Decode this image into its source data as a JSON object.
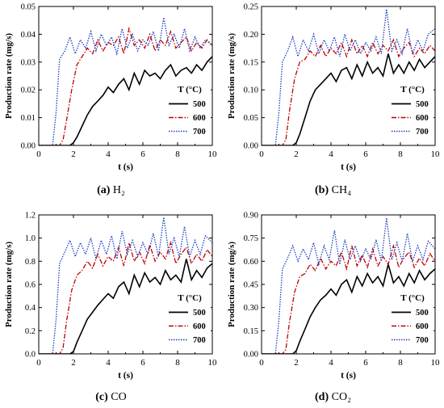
{
  "chart_data": [
    {
      "type": "line",
      "panel": "a",
      "caption_label": "(a)",
      "caption_text": "H₂",
      "xlabel": "t (s)",
      "ylabel": "Production rate (mg/s)",
      "xlim": [
        0,
        10
      ],
      "ylim": [
        0,
        0.05
      ],
      "xticks": [
        0,
        2,
        4,
        6,
        8,
        10
      ],
      "yticks": [
        0.0,
        0.01,
        0.02,
        0.03,
        0.04,
        0.05
      ],
      "ytick_labels": [
        "0.00",
        "0.01",
        "0.02",
        "0.03",
        "0.04",
        "0.05"
      ],
      "legend_title": "T (°C)",
      "legend_position": "bottom-right",
      "series": [
        {
          "name": "500",
          "style": "solid",
          "color": "#000000",
          "x": [
            0,
            1.8,
            2.0,
            2.2,
            2.5,
            2.8,
            3.1,
            3.4,
            3.7,
            4.0,
            4.3,
            4.6,
            4.9,
            5.2,
            5.5,
            5.8,
            6.1,
            6.4,
            6.7,
            7.0,
            7.3,
            7.6,
            7.9,
            8.2,
            8.5,
            8.8,
            9.1,
            9.4,
            9.7,
            10
          ],
          "y": [
            0,
            0,
            0.001,
            0.003,
            0.007,
            0.011,
            0.014,
            0.016,
            0.018,
            0.021,
            0.019,
            0.022,
            0.024,
            0.02,
            0.026,
            0.022,
            0.027,
            0.025,
            0.026,
            0.024,
            0.027,
            0.029,
            0.025,
            0.027,
            0.028,
            0.026,
            0.029,
            0.027,
            0.03,
            0.032
          ]
        },
        {
          "name": "600",
          "style": "dashdot",
          "color": "#c00000",
          "x": [
            0,
            1.2,
            1.4,
            1.6,
            1.9,
            2.2,
            2.5,
            2.8,
            3.1,
            3.4,
            3.7,
            4.0,
            4.3,
            4.6,
            4.9,
            5.2,
            5.5,
            5.8,
            6.1,
            6.4,
            6.7,
            7.0,
            7.3,
            7.6,
            7.9,
            8.2,
            8.5,
            8.8,
            9.1,
            9.4,
            9.7,
            10
          ],
          "y": [
            0,
            0,
            0.002,
            0.009,
            0.02,
            0.029,
            0.032,
            0.035,
            0.033,
            0.038,
            0.034,
            0.037,
            0.036,
            0.039,
            0.033,
            0.042,
            0.036,
            0.038,
            0.035,
            0.04,
            0.034,
            0.038,
            0.036,
            0.041,
            0.035,
            0.037,
            0.039,
            0.034,
            0.037,
            0.035,
            0.038,
            0.036
          ]
        },
        {
          "name": "700",
          "style": "dotted",
          "color": "#1f3fc0",
          "x": [
            0,
            0.8,
            1.0,
            1.2,
            1.5,
            1.8,
            2.1,
            2.4,
            2.7,
            3.0,
            3.3,
            3.6,
            3.9,
            4.2,
            4.5,
            4.8,
            5.1,
            5.4,
            5.7,
            6.0,
            6.3,
            6.6,
            6.9,
            7.2,
            7.5,
            7.8,
            8.1,
            8.4,
            8.7,
            9.0,
            9.3,
            9.6,
            10
          ],
          "y": [
            0,
            0,
            0.012,
            0.031,
            0.034,
            0.039,
            0.033,
            0.038,
            0.035,
            0.041,
            0.034,
            0.04,
            0.036,
            0.039,
            0.033,
            0.042,
            0.035,
            0.04,
            0.034,
            0.038,
            0.036,
            0.041,
            0.034,
            0.046,
            0.036,
            0.04,
            0.035,
            0.042,
            0.034,
            0.039,
            0.035,
            0.038,
            0.036
          ]
        }
      ]
    },
    {
      "type": "line",
      "panel": "b",
      "caption_label": "(b)",
      "caption_text": "CH₄",
      "xlabel": "t (s)",
      "ylabel": "Production rate (mg/s)",
      "xlim": [
        0,
        10
      ],
      "ylim": [
        0,
        0.25
      ],
      "xticks": [
        0,
        2,
        4,
        6,
        8,
        10
      ],
      "yticks": [
        0.0,
        0.05,
        0.1,
        0.15,
        0.2,
        0.25
      ],
      "ytick_labels": [
        "0.00",
        "0.05",
        "0.10",
        "0.15",
        "0.20",
        "0.25"
      ],
      "legend_title": "T (°C)",
      "legend_position": "bottom-right",
      "series": [
        {
          "name": "500",
          "style": "solid",
          "color": "#000000",
          "x": [
            0,
            1.8,
            2.0,
            2.2,
            2.5,
            2.8,
            3.1,
            3.4,
            3.7,
            4.0,
            4.3,
            4.6,
            4.9,
            5.2,
            5.5,
            5.8,
            6.1,
            6.4,
            6.7,
            7.0,
            7.3,
            7.6,
            7.9,
            8.2,
            8.5,
            8.8,
            9.1,
            9.4,
            9.7,
            10
          ],
          "y": [
            0,
            0,
            0.005,
            0.02,
            0.05,
            0.08,
            0.1,
            0.11,
            0.12,
            0.13,
            0.115,
            0.135,
            0.14,
            0.12,
            0.145,
            0.125,
            0.15,
            0.13,
            0.14,
            0.125,
            0.165,
            0.13,
            0.145,
            0.13,
            0.15,
            0.135,
            0.155,
            0.14,
            0.15,
            0.16
          ]
        },
        {
          "name": "600",
          "style": "dashdot",
          "color": "#c00000",
          "x": [
            0,
            1.2,
            1.4,
            1.6,
            1.9,
            2.2,
            2.5,
            2.8,
            3.1,
            3.4,
            3.7,
            4.0,
            4.3,
            4.6,
            4.9,
            5.2,
            5.5,
            5.8,
            6.1,
            6.4,
            6.7,
            7.0,
            7.3,
            7.6,
            7.9,
            8.2,
            8.5,
            8.8,
            9.1,
            9.4,
            9.7,
            10
          ],
          "y": [
            0,
            0,
            0.01,
            0.06,
            0.12,
            0.15,
            0.155,
            0.17,
            0.16,
            0.18,
            0.16,
            0.175,
            0.165,
            0.185,
            0.16,
            0.19,
            0.165,
            0.18,
            0.16,
            0.185,
            0.165,
            0.18,
            0.17,
            0.19,
            0.16,
            0.175,
            0.185,
            0.16,
            0.175,
            0.165,
            0.18,
            0.17
          ]
        },
        {
          "name": "700",
          "style": "dotted",
          "color": "#1f3fc0",
          "x": [
            0,
            0.8,
            1.0,
            1.2,
            1.5,
            1.8,
            2.1,
            2.4,
            2.7,
            3.0,
            3.3,
            3.6,
            3.9,
            4.2,
            4.5,
            4.8,
            5.1,
            5.4,
            5.7,
            6.0,
            6.3,
            6.6,
            6.9,
            7.2,
            7.5,
            7.8,
            8.1,
            8.4,
            8.7,
            9.0,
            9.3,
            9.6,
            10
          ],
          "y": [
            0,
            0,
            0.06,
            0.15,
            0.17,
            0.195,
            0.16,
            0.19,
            0.17,
            0.2,
            0.165,
            0.19,
            0.17,
            0.195,
            0.16,
            0.2,
            0.17,
            0.19,
            0.165,
            0.185,
            0.17,
            0.195,
            0.165,
            0.245,
            0.17,
            0.19,
            0.165,
            0.21,
            0.165,
            0.19,
            0.17,
            0.2,
            0.21
          ]
        }
      ]
    },
    {
      "type": "line",
      "panel": "c",
      "caption_label": "(c)",
      "caption_text": "CO",
      "xlabel": "t (s)",
      "ylabel": "Production rate (mg/s)",
      "xlim": [
        0,
        10
      ],
      "ylim": [
        0,
        1.2
      ],
      "xticks": [
        0,
        2,
        4,
        6,
        8,
        10
      ],
      "yticks": [
        0.0,
        0.2,
        0.4,
        0.6,
        0.8,
        1.0,
        1.2
      ],
      "ytick_labels": [
        "0.0",
        "0.2",
        "0.4",
        "0.6",
        "0.8",
        "1.0",
        "1.2"
      ],
      "legend_title": "T (°C)",
      "legend_position": "bottom-right",
      "series": [
        {
          "name": "500",
          "style": "solid",
          "color": "#000000",
          "x": [
            0,
            1.8,
            2.0,
            2.2,
            2.5,
            2.8,
            3.1,
            3.4,
            3.7,
            4.0,
            4.3,
            4.6,
            4.9,
            5.2,
            5.5,
            5.8,
            6.1,
            6.4,
            6.7,
            7.0,
            7.3,
            7.6,
            7.9,
            8.2,
            8.5,
            8.8,
            9.1,
            9.4,
            9.7,
            10
          ],
          "y": [
            0,
            0,
            0.02,
            0.1,
            0.2,
            0.3,
            0.36,
            0.42,
            0.47,
            0.52,
            0.48,
            0.58,
            0.62,
            0.52,
            0.68,
            0.58,
            0.7,
            0.62,
            0.66,
            0.6,
            0.72,
            0.64,
            0.68,
            0.62,
            0.82,
            0.64,
            0.72,
            0.66,
            0.74,
            0.78
          ]
        },
        {
          "name": "600",
          "style": "dashdot",
          "color": "#c00000",
          "x": [
            0,
            1.2,
            1.4,
            1.6,
            1.9,
            2.2,
            2.5,
            2.8,
            3.1,
            3.4,
            3.7,
            4.0,
            4.3,
            4.6,
            4.9,
            5.2,
            5.5,
            5.8,
            6.1,
            6.4,
            6.7,
            7.0,
            7.3,
            7.6,
            7.9,
            8.2,
            8.5,
            8.8,
            9.1,
            9.4,
            9.7,
            10
          ],
          "y": [
            0,
            0,
            0.05,
            0.28,
            0.55,
            0.68,
            0.72,
            0.8,
            0.74,
            0.86,
            0.76,
            0.84,
            0.8,
            0.92,
            0.76,
            0.96,
            0.8,
            0.88,
            0.78,
            0.94,
            0.8,
            0.88,
            0.82,
            0.96,
            0.78,
            0.86,
            0.92,
            0.78,
            0.86,
            0.8,
            0.9,
            0.84
          ]
        },
        {
          "name": "700",
          "style": "dotted",
          "color": "#1f3fc0",
          "x": [
            0,
            0.8,
            1.0,
            1.2,
            1.5,
            1.8,
            2.1,
            2.4,
            2.7,
            3.0,
            3.3,
            3.6,
            3.9,
            4.2,
            4.5,
            4.8,
            5.1,
            5.4,
            5.7,
            6.0,
            6.3,
            6.6,
            6.9,
            7.2,
            7.5,
            7.8,
            8.1,
            8.4,
            8.7,
            9.0,
            9.3,
            9.6,
            10
          ],
          "y": [
            0,
            0,
            0.3,
            0.78,
            0.88,
            0.98,
            0.84,
            0.96,
            0.86,
            1.0,
            0.82,
            0.98,
            0.86,
            1.02,
            0.82,
            1.06,
            0.86,
            0.98,
            0.84,
            0.96,
            0.86,
            1.04,
            0.84,
            1.18,
            0.86,
            1.0,
            0.84,
            1.1,
            0.84,
            0.98,
            0.86,
            1.02,
            0.96
          ]
        }
      ]
    },
    {
      "type": "line",
      "panel": "d",
      "caption_label": "(d)",
      "caption_text": "CO₂",
      "xlabel": "t (s)",
      "ylabel": "Production rate (mg/s)",
      "xlim": [
        0,
        10
      ],
      "ylim": [
        0,
        0.9
      ],
      "xticks": [
        0,
        2,
        4,
        6,
        8,
        10
      ],
      "yticks": [
        0.0,
        0.15,
        0.3,
        0.45,
        0.6,
        0.75,
        0.9
      ],
      "ytick_labels": [
        "0.00",
        "0.15",
        "0.30",
        "0.45",
        "0.60",
        "0.75",
        "0.90"
      ],
      "legend_title": "T (°C)",
      "legend_position": "bottom-right",
      "series": [
        {
          "name": "500",
          "style": "solid",
          "color": "#000000",
          "x": [
            0,
            1.8,
            2.0,
            2.2,
            2.5,
            2.8,
            3.1,
            3.4,
            3.7,
            4.0,
            4.3,
            4.6,
            4.9,
            5.2,
            5.5,
            5.8,
            6.1,
            6.4,
            6.7,
            7.0,
            7.3,
            7.6,
            7.9,
            8.2,
            8.5,
            8.8,
            9.1,
            9.4,
            9.7,
            10
          ],
          "y": [
            0,
            0,
            0.02,
            0.08,
            0.16,
            0.24,
            0.3,
            0.35,
            0.38,
            0.42,
            0.38,
            0.45,
            0.48,
            0.4,
            0.5,
            0.44,
            0.52,
            0.46,
            0.5,
            0.44,
            0.58,
            0.46,
            0.5,
            0.44,
            0.52,
            0.46,
            0.54,
            0.48,
            0.52,
            0.55
          ]
        },
        {
          "name": "600",
          "style": "dashdot",
          "color": "#c00000",
          "x": [
            0,
            1.2,
            1.4,
            1.6,
            1.9,
            2.2,
            2.5,
            2.8,
            3.1,
            3.4,
            3.7,
            4.0,
            4.3,
            4.6,
            4.9,
            5.2,
            5.5,
            5.8,
            6.1,
            6.4,
            6.7,
            7.0,
            7.3,
            7.6,
            7.9,
            8.2,
            8.5,
            8.8,
            9.1,
            9.4,
            9.7,
            10
          ],
          "y": [
            0,
            0,
            0.03,
            0.2,
            0.4,
            0.5,
            0.52,
            0.58,
            0.54,
            0.62,
            0.55,
            0.6,
            0.57,
            0.66,
            0.55,
            0.7,
            0.57,
            0.64,
            0.56,
            0.68,
            0.57,
            0.63,
            0.58,
            0.7,
            0.56,
            0.62,
            0.66,
            0.56,
            0.62,
            0.57,
            0.65,
            0.6
          ]
        },
        {
          "name": "700",
          "style": "dotted",
          "color": "#1f3fc0",
          "x": [
            0,
            0.8,
            1.0,
            1.2,
            1.5,
            1.8,
            2.1,
            2.4,
            2.7,
            3.0,
            3.3,
            3.6,
            3.9,
            4.2,
            4.5,
            4.8,
            5.1,
            5.4,
            5.7,
            6.0,
            6.3,
            6.6,
            6.9,
            7.2,
            7.5,
            7.8,
            8.1,
            8.4,
            8.7,
            9.0,
            9.3,
            9.6,
            10
          ],
          "y": [
            0,
            0,
            0.22,
            0.55,
            0.62,
            0.7,
            0.6,
            0.68,
            0.61,
            0.72,
            0.58,
            0.7,
            0.61,
            0.8,
            0.58,
            0.74,
            0.61,
            0.7,
            0.6,
            0.68,
            0.61,
            0.74,
            0.6,
            0.88,
            0.61,
            0.72,
            0.6,
            0.78,
            0.6,
            0.7,
            0.61,
            0.73,
            0.68
          ]
        }
      ]
    }
  ]
}
